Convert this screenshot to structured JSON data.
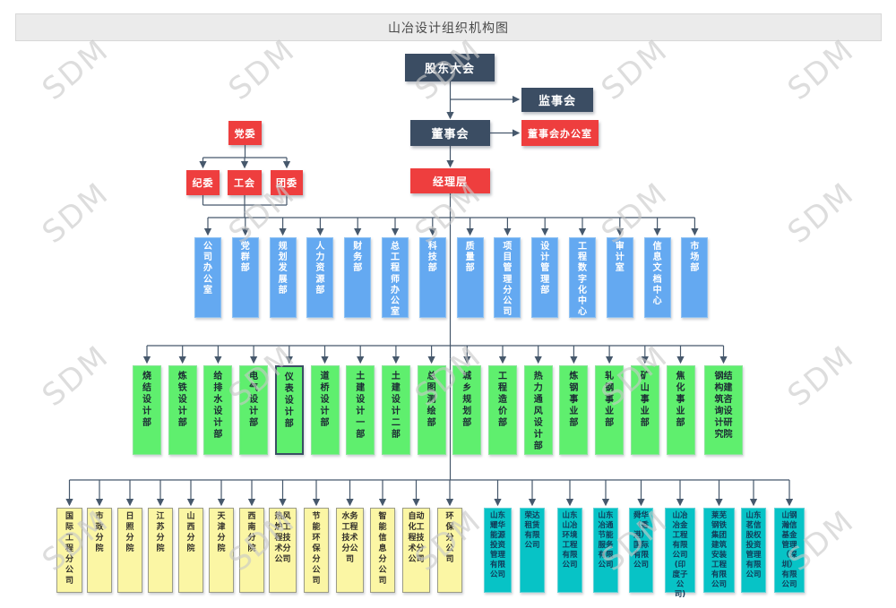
{
  "title": "山冶设计组织机构图",
  "watermark": "SDM",
  "colors": {
    "dark_node": "#3b4d63",
    "red_node": "#ee3e3e",
    "functional_dept": "#64a9f1",
    "design_dept": "#5fef6e",
    "branch": "#fbf6a4",
    "subsidiary": "#07c3c6",
    "connector": "#46586c",
    "selected_border": "#3a4f63",
    "watermark": "#c9c9c9"
  },
  "governance": {
    "shareholders": "股东大会",
    "supervisory_board": "监事会",
    "board": "董事会",
    "board_office": "董事会办公室",
    "management": "经理层",
    "party_committee": "党委",
    "party_orgs": [
      "纪委",
      "工会",
      "团委"
    ]
  },
  "functional_departments": [
    "公司办公室",
    "党群部",
    "规划发展部",
    "人力资源部",
    "财务部",
    "总工程师办公室",
    "科技部",
    "质量部",
    "项目管理分公司",
    "设计管理部",
    "工程数字化中心",
    "审计室",
    "信息文档中心",
    "市场部"
  ],
  "design_departments": {
    "selected": "仪表设计部",
    "items": [
      "烧结设计部",
      "炼铁设计部",
      "给排水设计部",
      "电气设计部",
      "仪表设计部",
      "道桥设计部",
      "土建设计一部",
      "土建设计二部",
      "总图测绘部",
      "城乡规划部",
      "工程造价部",
      "热力通风设计部",
      "炼钢事业部",
      "轧钢事业部",
      "矿山事业部",
      "焦化事业部",
      "钢结构建筑咨询设计研究院"
    ]
  },
  "branches": [
    "国际工程分公司",
    "市政分院",
    "日照分院",
    "江苏分院",
    "山西分院",
    "天津分院",
    "西南分院",
    "热风炉工程技术分公司",
    "节能环保分公司",
    "水务工程技术分公司",
    "智能信息分公司",
    "自动化工程技术分公司",
    "环保分公司"
  ],
  "subsidiaries": [
    "山东耀华能源投资管理有限公司",
    "荣达租赁有限公司",
    "山东山冶环境工程有限公司",
    "山东冶通节能服务有限公司",
    "舜华（香港）国际有限公司",
    "山冶冶金工程有限公司(印度子公司)",
    "莱芜钢铁集团建筑安装工程有限公司",
    "山东茗信股权投资管理有限公司",
    "山钢瀚信基金管理（深圳）有限公司"
  ]
}
